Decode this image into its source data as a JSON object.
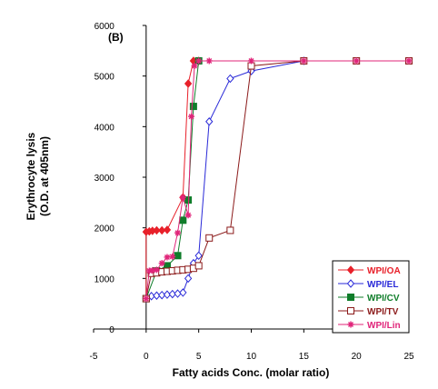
{
  "chart_data": {
    "type": "line",
    "panel_label": "(B)",
    "xlabel": "Fatty acids Conc. (molar ratio)",
    "ylabel_lines": [
      "Erythrocyte lysis",
      "(O.D. at 405nm)"
    ],
    "xlim": [
      -5,
      25
    ],
    "ylim": [
      0,
      6000
    ],
    "xticks": [
      -5,
      0,
      5,
      10,
      15,
      20,
      25
    ],
    "yticks": [
      0,
      1000,
      2000,
      3000,
      4000,
      5000,
      6000
    ],
    "grid": false,
    "legend_position": "bottom-right",
    "series": [
      {
        "name": "WPI/OA",
        "color": "#e8202a",
        "marker": "diamond-filled",
        "x": [
          0,
          0,
          0.3,
          0.6,
          1,
          1.5,
          2,
          3.5,
          4,
          4.5,
          5
        ],
        "y": [
          600,
          1920,
          1930,
          1940,
          1950,
          1950,
          1960,
          2600,
          4850,
          5300,
          5300
        ]
      },
      {
        "name": "WPI/EL",
        "color": "#2a2ad8",
        "marker": "diamond-open",
        "x": [
          0,
          0.5,
          1,
          1.5,
          2,
          2.5,
          3,
          3.5,
          4,
          4.5,
          5,
          6,
          8,
          10,
          15
        ],
        "y": [
          600,
          650,
          660,
          670,
          680,
          690,
          700,
          720,
          1000,
          1300,
          1450,
          4100,
          4950,
          5100,
          5300
        ]
      },
      {
        "name": "WPI/CV",
        "color": "#0f7d2a",
        "marker": "square-filled",
        "x": [
          0,
          1,
          2,
          3,
          3.5,
          4,
          4.5,
          5
        ],
        "y": [
          600,
          1150,
          1250,
          1450,
          2150,
          2550,
          4400,
          5300
        ]
      },
      {
        "name": "WPI/TV",
        "color": "#8b1a1a",
        "marker": "square-open",
        "x": [
          0,
          0.5,
          1,
          1.5,
          2,
          2.5,
          3,
          3.5,
          4,
          4.5,
          5,
          6,
          8,
          10,
          15,
          20,
          25
        ],
        "y": [
          600,
          1100,
          1110,
          1130,
          1140,
          1150,
          1160,
          1170,
          1180,
          1200,
          1250,
          1800,
          1950,
          5200,
          5300,
          5300,
          5300
        ]
      },
      {
        "name": "WPI/Lin",
        "color": "#e0257a",
        "marker": "asterisk",
        "x": [
          0,
          0.3,
          0.6,
          1,
          1.5,
          2,
          2.5,
          3,
          3.5,
          4,
          4.3,
          4.6,
          5,
          6,
          10,
          15,
          20,
          25
        ],
        "y": [
          600,
          1150,
          1160,
          1170,
          1300,
          1420,
          1430,
          1900,
          2600,
          2250,
          4200,
          5200,
          5300,
          5300,
          5300,
          5300,
          5300,
          5300
        ]
      }
    ]
  }
}
